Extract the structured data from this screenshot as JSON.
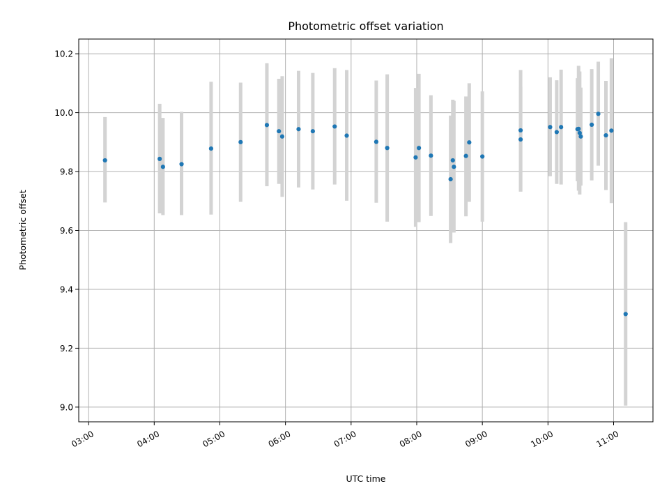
{
  "chart_data": {
    "type": "scatter",
    "title": "Photometric offset variation",
    "xlabel": "UTC time",
    "ylabel": "Photometric offset",
    "xlim": [
      "02:51",
      "11:36"
    ],
    "ylim": [
      8.95,
      10.25
    ],
    "x_ticks": [
      "03:00",
      "04:00",
      "05:00",
      "06:00",
      "07:00",
      "08:00",
      "09:00",
      "10:00",
      "11:00"
    ],
    "y_ticks": [
      9.0,
      9.2,
      9.4,
      9.6,
      9.8,
      10.0,
      10.2
    ],
    "grid": true,
    "marker_color": "#1f77b4",
    "errorbar_color": "#d3d3d3",
    "points": [
      {
        "time": "03:15",
        "y": 9.838,
        "low": 9.695,
        "high": 9.985
      },
      {
        "time": "04:05",
        "y": 9.843,
        "low": 9.658,
        "high": 10.03
      },
      {
        "time": "04:08",
        "y": 9.816,
        "low": 9.652,
        "high": 9.982
      },
      {
        "time": "04:25",
        "y": 9.825,
        "low": 9.652,
        "high": 10.003
      },
      {
        "time": "04:52",
        "y": 9.878,
        "low": 9.654,
        "high": 10.105
      },
      {
        "time": "05:19",
        "y": 9.9,
        "low": 9.697,
        "high": 10.102
      },
      {
        "time": "05:43",
        "y": 9.958,
        "low": 9.75,
        "high": 10.168
      },
      {
        "time": "05:54",
        "y": 9.937,
        "low": 9.758,
        "high": 10.115
      },
      {
        "time": "05:57",
        "y": 9.919,
        "low": 9.714,
        "high": 10.124
      },
      {
        "time": "06:12",
        "y": 9.944,
        "low": 9.746,
        "high": 10.142
      },
      {
        "time": "06:25",
        "y": 9.937,
        "low": 9.739,
        "high": 10.135
      },
      {
        "time": "06:45",
        "y": 9.953,
        "low": 9.756,
        "high": 10.151
      },
      {
        "time": "06:56",
        "y": 9.922,
        "low": 9.701,
        "high": 10.145
      },
      {
        "time": "07:23",
        "y": 9.901,
        "low": 9.694,
        "high": 10.109
      },
      {
        "time": "07:33",
        "y": 9.88,
        "low": 9.63,
        "high": 10.13
      },
      {
        "time": "07:59",
        "y": 9.848,
        "low": 9.612,
        "high": 10.084
      },
      {
        "time": "08:02",
        "y": 9.88,
        "low": 9.628,
        "high": 10.132
      },
      {
        "time": "08:13",
        "y": 9.854,
        "low": 9.649,
        "high": 10.059
      },
      {
        "time": "08:31",
        "y": 9.774,
        "low": 9.557,
        "high": 9.99
      },
      {
        "time": "08:33",
        "y": 9.838,
        "low": 9.632,
        "high": 10.044
      },
      {
        "time": "08:34",
        "y": 9.816,
        "low": 9.593,
        "high": 10.04
      },
      {
        "time": "08:45",
        "y": 9.853,
        "low": 9.648,
        "high": 10.055
      },
      {
        "time": "08:48",
        "y": 9.899,
        "low": 9.697,
        "high": 10.1
      },
      {
        "time": "09:00",
        "y": 9.851,
        "low": 9.63,
        "high": 10.072
      },
      {
        "time": "09:35",
        "y": 9.94,
        "low": 9.732,
        "high": 10.145
      },
      {
        "time": "09:35",
        "y": 9.909,
        "low": 9.732,
        "high": 10.087
      },
      {
        "time": "10:02",
        "y": 9.951,
        "low": 9.784,
        "high": 10.12
      },
      {
        "time": "10:08",
        "y": 9.934,
        "low": 9.758,
        "high": 10.11
      },
      {
        "time": "10:12",
        "y": 9.951,
        "low": 9.756,
        "high": 10.146
      },
      {
        "time": "10:27",
        "y": 9.944,
        "low": 9.767,
        "high": 10.117
      },
      {
        "time": "10:28",
        "y": 9.945,
        "low": 9.735,
        "high": 10.159
      },
      {
        "time": "10:29",
        "y": 9.931,
        "low": 9.722,
        "high": 10.14
      },
      {
        "time": "10:30",
        "y": 9.919,
        "low": 9.752,
        "high": 10.085
      },
      {
        "time": "10:40",
        "y": 9.959,
        "low": 9.77,
        "high": 10.148
      },
      {
        "time": "10:46",
        "y": 9.996,
        "low": 9.82,
        "high": 10.173
      },
      {
        "time": "10:53",
        "y": 9.923,
        "low": 9.737,
        "high": 10.108
      },
      {
        "time": "10:58",
        "y": 9.939,
        "low": 9.693,
        "high": 10.185
      },
      {
        "time": "11:11",
        "y": 9.316,
        "low": 9.005,
        "high": 9.628
      }
    ]
  }
}
